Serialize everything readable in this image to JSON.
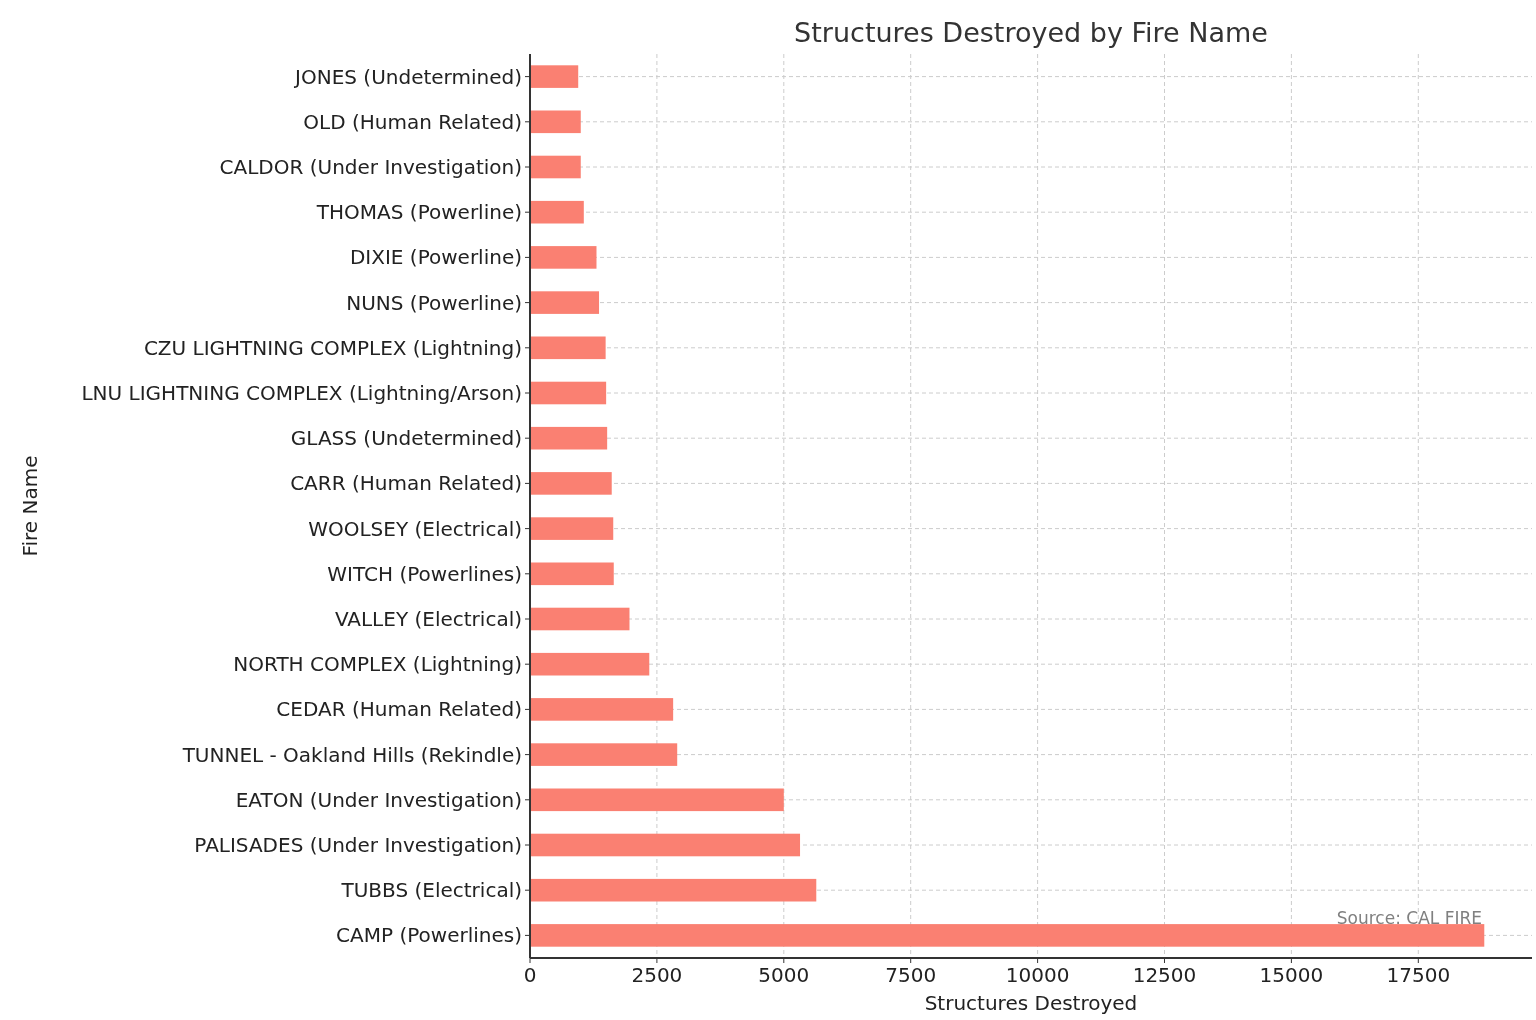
{
  "chart_data": {
    "type": "bar",
    "orientation": "horizontal",
    "title": "Structures Destroyed by Fire Name",
    "xlabel": "Structures Destroyed",
    "ylabel": "Fire Name",
    "categories": [
      "JONES (Undetermined)",
      "OLD (Human Related)",
      "CALDOR (Under Investigation)",
      "THOMAS (Powerline)",
      "DIXIE (Powerline)",
      "NUNS (Powerline)",
      "CZU LIGHTNING COMPLEX (Lightning)",
      "LNU LIGHTNING COMPLEX (Lightning/Arson)",
      "GLASS (Undetermined)",
      "CARR (Human Related)",
      "WOOLSEY (Electrical)",
      "WITCH (Powerlines)",
      "VALLEY (Electrical)",
      "NORTH COMPLEX (Lightning)",
      "CEDAR (Human Related)",
      "TUNNEL - Oakland Hills (Rekindle)",
      "EATON (Under Investigation)",
      "PALISADES (Under Investigation)",
      "TUBBS (Electrical)",
      "CAMP (Powerlines)"
    ],
    "values": [
      950,
      1000,
      1000,
      1060,
      1310,
      1360,
      1490,
      1500,
      1520,
      1610,
      1640,
      1650,
      1960,
      2350,
      2820,
      2900,
      5000,
      5320,
      5640,
      18800
    ],
    "color": "#fa8072",
    "xlim": [
      0,
      19740
    ],
    "xticks": [
      0,
      2500,
      5000,
      7500,
      10000,
      12500,
      15000,
      17500
    ],
    "grid": true,
    "annotations": [
      "Source: CAL FIRE"
    ]
  }
}
